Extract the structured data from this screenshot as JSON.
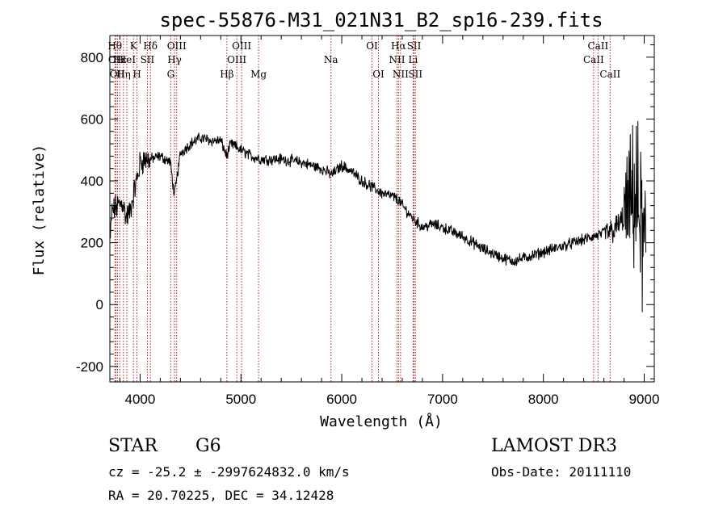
{
  "chart_data": {
    "type": "line",
    "title": "spec-55876-M31_021N31_B2_sp16-239.fits",
    "xlabel": "Wavelength (Å)",
    "ylabel": "Flux (relative)",
    "xlim": [
      3700,
      9100
    ],
    "ylim": [
      -250,
      870
    ],
    "xticks": [
      4000,
      5000,
      6000,
      7000,
      8000,
      9000
    ],
    "yticks": [
      -200,
      0,
      200,
      400,
      600,
      800
    ],
    "continuum": {
      "x": [
        3700,
        3720,
        3780,
        3830,
        3860,
        3900,
        3950,
        3980,
        4000,
        4050,
        4100,
        4200,
        4300,
        4340,
        4400,
        4500,
        4600,
        4700,
        4800,
        4860,
        4900,
        5000,
        5100,
        5200,
        5400,
        5600,
        5800,
        5900,
        6000,
        6100,
        6200,
        6300,
        6400,
        6500,
        6560,
        6600,
        6700,
        6800,
        6900,
        7000,
        7200,
        7400,
        7600,
        7700,
        7800,
        8000,
        8200,
        8400,
        8600,
        8700,
        8800,
        8900,
        8950,
        9000
      ],
      "y": [
        180,
        300,
        320,
        330,
        280,
        300,
        380,
        420,
        460,
        470,
        470,
        480,
        460,
        350,
        490,
        520,
        540,
        530,
        530,
        480,
        520,
        500,
        480,
        470,
        470,
        460,
        440,
        420,
        450,
        430,
        400,
        380,
        360,
        350,
        340,
        320,
        280,
        250,
        260,
        250,
        220,
        180,
        150,
        140,
        150,
        170,
        190,
        210,
        230,
        240,
        280,
        350,
        300,
        150
      ]
    },
    "lines": [
      {
        "wave": 3750,
        "row": 0,
        "label": "Hθ"
      },
      {
        "wave": 3760,
        "row": 1,
        "label": "OII"
      },
      {
        "wave": 3775,
        "row": 2,
        "label": "OII"
      },
      {
        "wave": 3798,
        "row": 1,
        "label": "Hε"
      },
      {
        "wave": 3835,
        "row": 2,
        "label": "Hη"
      },
      {
        "wave": 3868,
        "row": 1,
        "label": "HeI"
      },
      {
        "wave": 3934,
        "row": 0,
        "label": "K"
      },
      {
        "wave": 3969,
        "row": 2,
        "label": "H"
      },
      {
        "wave": 4072,
        "row": 1,
        "label": "SII"
      },
      {
        "wave": 4102,
        "row": 0,
        "label": "Hδ"
      },
      {
        "wave": 4304,
        "row": 2,
        "label": "G"
      },
      {
        "wave": 4341,
        "row": 1,
        "label": "Hγ"
      },
      {
        "wave": 4363,
        "row": 0,
        "label": "OIII"
      },
      {
        "wave": 4861,
        "row": 2,
        "label": "Hβ"
      },
      {
        "wave": 4959,
        "row": 1,
        "label": "OIII"
      },
      {
        "wave": 5007,
        "row": 0,
        "label": "OIII"
      },
      {
        "wave": 5175,
        "row": 2,
        "label": "Mg"
      },
      {
        "wave": 5893,
        "row": 1,
        "label": "Na"
      },
      {
        "wave": 6300,
        "row": 0,
        "label": "OI"
      },
      {
        "wave": 6364,
        "row": 2,
        "label": "OI"
      },
      {
        "wave": 6548,
        "row": 1,
        "label": "NII"
      },
      {
        "wave": 6563,
        "row": 0,
        "label": "Hα"
      },
      {
        "wave": 6583,
        "row": 2,
        "label": "NII"
      },
      {
        "wave": 6708,
        "row": 1,
        "label": "Li"
      },
      {
        "wave": 6717,
        "row": 0,
        "label": "SII"
      },
      {
        "wave": 6731,
        "row": 2,
        "label": "SII"
      },
      {
        "wave": 8498,
        "row": 1,
        "label": "CaII"
      },
      {
        "wave": 8542,
        "row": 0,
        "label": "CaII"
      },
      {
        "wave": 8662,
        "row": 2,
        "label": "CaII"
      }
    ]
  },
  "info": {
    "class_label": "STAR",
    "subclass": "G6",
    "survey": "LAMOST DR3",
    "cz_line": "cz = -25.2 ± -2997624832.0 km/s",
    "obs_date": "Obs-Date: 20111110",
    "coords": "RA =  20.70225, DEC =  34.12428"
  },
  "colors": {
    "trace": "#000000",
    "line_marker": "#b22222"
  }
}
